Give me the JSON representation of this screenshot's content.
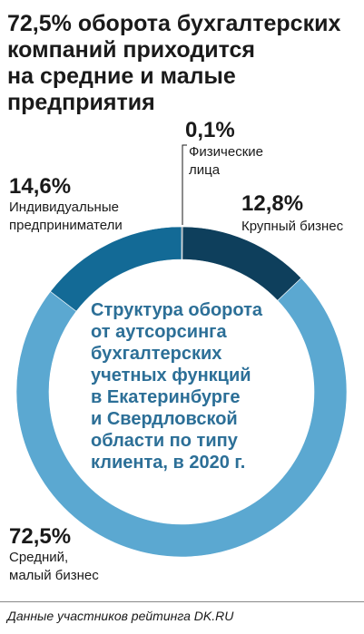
{
  "title_lines": [
    "72,5% оборота бухгалтерских",
    "компаний приходится",
    "на средние и малые",
    "предприятия"
  ],
  "center_lines": [
    "Структура оборота",
    "от аутсорсинга",
    "бухгалтерских",
    "учетных функций",
    "в Екатеринбурге",
    "и Свердловской",
    "области по типу",
    "клиента, в 2020 г."
  ],
  "source": "Данные участников рейтинга DK.RU",
  "colors": {
    "dark": "#0e3f5c",
    "mid": "#136a96",
    "light": "#5ba8d1",
    "center_text": "#2c6f97",
    "edge": "#1a1a1a"
  },
  "chart_data": {
    "type": "pie",
    "donut": true,
    "title": "Структура оборота от аутсорсинга бухгалтерских учетных функций в Екатеринбурге и Свердловской области по типу клиента, в 2020 г.",
    "slices": [
      {
        "value": 0.1,
        "value_label": "0,1%",
        "label_lines": [
          "Физические",
          "лица"
        ],
        "color": "#1a1a1a"
      },
      {
        "value": 12.8,
        "value_label": "12,8%",
        "label_lines": [
          "Крупный бизнес"
        ],
        "color": "#0e3f5c"
      },
      {
        "value": 72.5,
        "value_label": "72,5%",
        "label_lines": [
          "Средний,",
          "малый бизнес"
        ],
        "color": "#5ba8d1"
      },
      {
        "value": 14.6,
        "value_label": "14,6%",
        "label_lines": [
          "Индивидуальные",
          "предприниматели"
        ],
        "color": "#136a96"
      }
    ]
  }
}
